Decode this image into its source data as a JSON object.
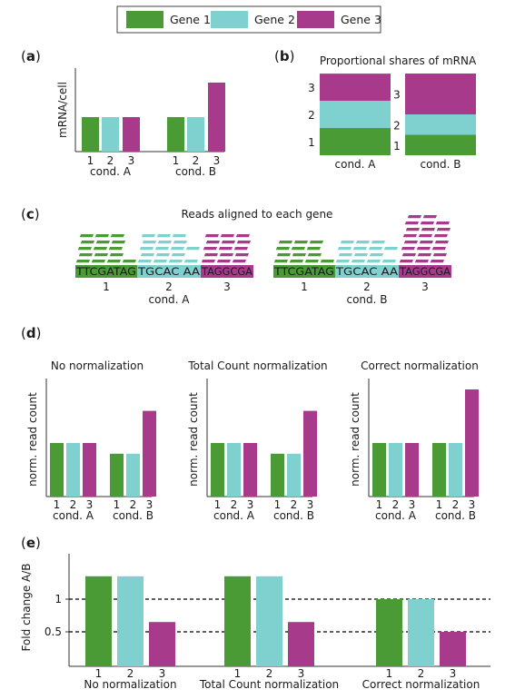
{
  "colors": {
    "gene1": "#4a9a35",
    "gene2": "#7fd1d0",
    "gene3": "#a83a8c"
  },
  "legend": {
    "items": [
      "Gene 1",
      "Gene 2",
      "Gene 3"
    ]
  },
  "panels": {
    "a": {
      "label": "a",
      "ylabel": "mRNA/cell"
    },
    "b": {
      "label": "b",
      "title": "Proportional shares of mRNA"
    },
    "c": {
      "label": "c",
      "title": "Reads aligned to each gene"
    },
    "d": {
      "label": "d",
      "ylabel": "norm. read count",
      "titles": [
        "No normalization",
        "Total Count normalization",
        "Correct normalization"
      ]
    },
    "e": {
      "label": "e",
      "ylabel": "Fold change A/B",
      "groups": [
        "No normalization",
        "Total Count normalization",
        "Correct normalization"
      ],
      "yticks": [
        "1",
        "0.5"
      ]
    }
  },
  "tick_labels": [
    "1",
    "2",
    "3"
  ],
  "conds": [
    "cond. A",
    "cond. B"
  ],
  "sequences": {
    "gene1": "TTCGATAG",
    "gene2": "TGCAC AA",
    "gene3": "TAGGCGA"
  },
  "chart_data": [
    {
      "type": "bar",
      "panel": "a",
      "categories": [
        "cond. A",
        "cond. B"
      ],
      "series": [
        {
          "name": "Gene 1",
          "values": [
            1,
            1
          ]
        },
        {
          "name": "Gene 2",
          "values": [
            1,
            1
          ]
        },
        {
          "name": "Gene 3",
          "values": [
            1,
            2
          ]
        }
      ],
      "ylabel": "mRNA/cell"
    },
    {
      "type": "bar",
      "panel": "b",
      "stacked": true,
      "title": "Proportional shares of mRNA",
      "categories": [
        "cond. A",
        "cond. B"
      ],
      "series": [
        {
          "name": "Gene 1",
          "values": [
            0.333,
            0.25
          ]
        },
        {
          "name": "Gene 2",
          "values": [
            0.333,
            0.25
          ]
        },
        {
          "name": "Gene 3",
          "values": [
            0.333,
            0.5
          ]
        }
      ]
    },
    {
      "type": "bar",
      "panel": "c",
      "title": "Reads aligned to each gene",
      "categories": [
        "cond. A",
        "cond. B"
      ],
      "series": [
        {
          "name": "Gene 1",
          "values": [
            5,
            4
          ]
        },
        {
          "name": "Gene 2",
          "values": [
            5,
            4
          ]
        },
        {
          "name": "Gene 3",
          "values": [
            5,
            8
          ]
        }
      ]
    },
    {
      "type": "bar",
      "panel": "d",
      "title": "No normalization",
      "categories": [
        "cond. A",
        "cond. B"
      ],
      "series": [
        {
          "name": "Gene 1",
          "values": [
            5,
            4
          ]
        },
        {
          "name": "Gene 2",
          "values": [
            5,
            4
          ]
        },
        {
          "name": "Gene 3",
          "values": [
            5,
            8
          ]
        }
      ],
      "ylabel": "norm. read count"
    },
    {
      "type": "bar",
      "panel": "d",
      "title": "Total Count normalization",
      "categories": [
        "cond. A",
        "cond. B"
      ],
      "series": [
        {
          "name": "Gene 1",
          "values": [
            5,
            4
          ]
        },
        {
          "name": "Gene 2",
          "values": [
            5,
            4
          ]
        },
        {
          "name": "Gene 3",
          "values": [
            5,
            8
          ]
        }
      ],
      "ylabel": "norm. read count"
    },
    {
      "type": "bar",
      "panel": "d",
      "title": "Correct normalization",
      "categories": [
        "cond. A",
        "cond. B"
      ],
      "series": [
        {
          "name": "Gene 1",
          "values": [
            5,
            5
          ]
        },
        {
          "name": "Gene 2",
          "values": [
            5,
            5
          ]
        },
        {
          "name": "Gene 3",
          "values": [
            5,
            10
          ]
        }
      ],
      "ylabel": "norm. read count"
    },
    {
      "type": "bar",
      "panel": "e",
      "categories": [
        "No normalization",
        "Total Count normalization",
        "Correct normalization"
      ],
      "series": [
        {
          "name": "Gene 1",
          "values": [
            1.35,
            1.35,
            1.0
          ]
        },
        {
          "name": "Gene 2",
          "values": [
            1.35,
            1.35,
            1.0
          ]
        },
        {
          "name": "Gene 3",
          "values": [
            0.65,
            0.65,
            0.5
          ]
        }
      ],
      "ylabel": "Fold change A/B",
      "yticks": [
        1,
        0.5
      ],
      "reference_lines": [
        1,
        0.5
      ]
    }
  ]
}
